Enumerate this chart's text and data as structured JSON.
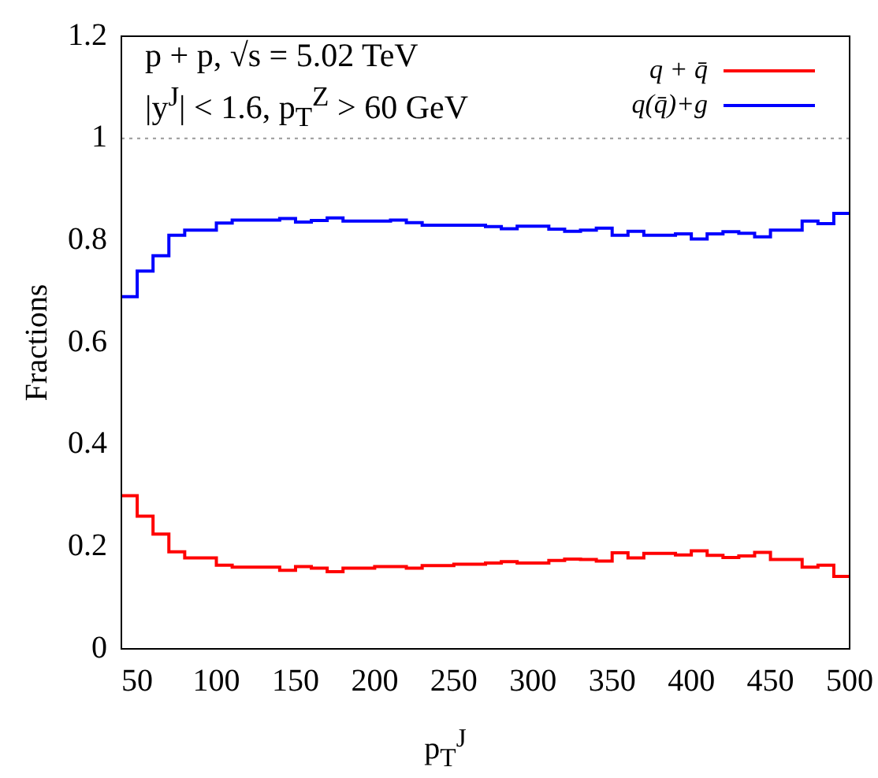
{
  "chart_data": {
    "type": "histogram",
    "xlabel": "p$_{T}$$^{J}$",
    "ylabel": "Fractions",
    "annotations": [
      "p + p, √s = 5.02 TeV",
      "|y$^{J}$| < 1.6,  p$_{T}$$^{Z}$ > 60 GeV"
    ],
    "bins": [
      40,
      50,
      60,
      70,
      80,
      90,
      100,
      110,
      120,
      130,
      140,
      150,
      160,
      170,
      180,
      190,
      200,
      210,
      220,
      230,
      240,
      250,
      260,
      270,
      280,
      290,
      300,
      310,
      320,
      330,
      340,
      350,
      360,
      370,
      380,
      390,
      400,
      410,
      420,
      430,
      440,
      450,
      460,
      470,
      480,
      490,
      500
    ],
    "series": [
      {
        "name": "q + q̄",
        "color": "#ff0000",
        "values": [
          0.3,
          0.26,
          0.225,
          0.19,
          0.178,
          0.178,
          0.164,
          0.16,
          0.16,
          0.16,
          0.154,
          0.161,
          0.158,
          0.151,
          0.158,
          0.158,
          0.161,
          0.161,
          0.158,
          0.163,
          0.163,
          0.166,
          0.166,
          0.168,
          0.171,
          0.168,
          0.168,
          0.173,
          0.176,
          0.175,
          0.172,
          0.188,
          0.178,
          0.187,
          0.187,
          0.184,
          0.192,
          0.183,
          0.179,
          0.182,
          0.189,
          0.175,
          0.175,
          0.16,
          0.164,
          0.142
        ]
      },
      {
        "name": "q(q̄)+g",
        "color": "#0000ff",
        "values": [
          0.69,
          0.74,
          0.77,
          0.81,
          0.82,
          0.82,
          0.834,
          0.84,
          0.84,
          0.84,
          0.843,
          0.836,
          0.839,
          0.844,
          0.838,
          0.838,
          0.838,
          0.84,
          0.835,
          0.83,
          0.83,
          0.83,
          0.83,
          0.827,
          0.823,
          0.828,
          0.828,
          0.822,
          0.818,
          0.82,
          0.824,
          0.81,
          0.818,
          0.81,
          0.81,
          0.813,
          0.803,
          0.813,
          0.817,
          0.814,
          0.807,
          0.82,
          0.82,
          0.838,
          0.833,
          0.853
        ]
      }
    ],
    "xlim": [
      40,
      500
    ],
    "xticks": [
      50,
      100,
      150,
      200,
      250,
      300,
      350,
      400,
      450,
      500
    ],
    "ylim": [
      0,
      1.2
    ],
    "yticks": [
      0,
      0.2,
      0.4,
      0.6,
      0.8,
      1,
      1.2
    ],
    "ref_lines": [
      {
        "axis": "y",
        "value": 1,
        "color": "#999999",
        "line_style": "dotted"
      }
    ],
    "legend": "top right",
    "grid": false
  }
}
